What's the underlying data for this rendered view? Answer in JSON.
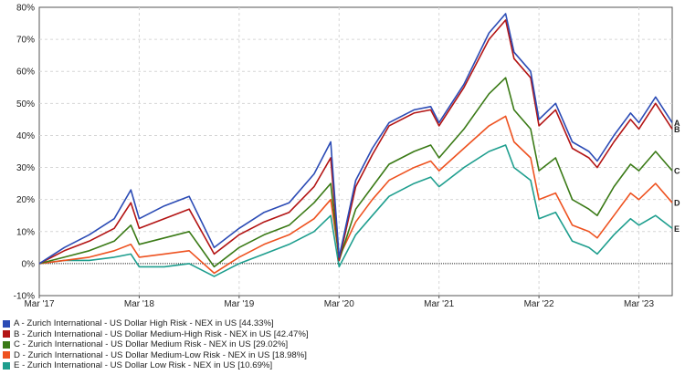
{
  "chart_data": {
    "type": "line",
    "x_tick_labels": [
      "Mar '17",
      "Mar '18",
      "Mar '19",
      "Mar '20",
      "Mar '21",
      "Mar '22",
      "Mar '23"
    ],
    "y_tick_labels": [
      "-10%",
      "0%",
      "10%",
      "20%",
      "30%",
      "40%",
      "50%",
      "60%",
      "70%",
      "80%"
    ],
    "ylim": [
      -10,
      80
    ],
    "xlim": [
      "2017-03",
      "2023-07"
    ],
    "grid": true,
    "zero_line": true,
    "legend_position": "bottom",
    "x": [
      "2017-03",
      "2017-06",
      "2017-09",
      "2017-12",
      "2018-02",
      "2018-03",
      "2018-06",
      "2018-09",
      "2018-12",
      "2019-03",
      "2019-06",
      "2019-09",
      "2019-12",
      "2020-02",
      "2020-03",
      "2020-05",
      "2020-07",
      "2020-09",
      "2020-12",
      "2021-02",
      "2021-03",
      "2021-06",
      "2021-09",
      "2021-11",
      "2021-12",
      "2022-02",
      "2022-03",
      "2022-05",
      "2022-07",
      "2022-09",
      "2022-10",
      "2022-12",
      "2023-02",
      "2023-03",
      "2023-05",
      "2023-07"
    ],
    "series": [
      {
        "name": "A - Zurich International - US Dollar High Risk - NEX in US [44.33%]",
        "end_label": "A",
        "color": "#2b4bb5",
        "values": [
          0,
          5,
          9,
          14,
          23,
          14,
          18,
          21,
          5,
          11,
          16,
          19,
          28,
          38,
          2,
          26,
          36,
          44,
          48,
          49,
          44,
          56,
          72,
          78,
          66,
          60,
          45,
          50,
          38,
          35,
          32,
          40,
          47,
          44,
          52,
          44
        ]
      },
      {
        "name": "B - Zurich International - US Dollar Medium-High Risk - NEX in US [42.47%]",
        "end_label": "B",
        "color": "#b31414",
        "values": [
          0,
          4,
          7,
          11,
          19,
          11,
          14,
          17,
          3,
          9,
          13,
          16,
          24,
          33,
          1,
          24,
          34,
          43,
          47,
          48,
          43,
          55,
          70,
          76,
          64,
          58,
          43,
          48,
          36,
          33,
          30,
          38,
          45,
          42,
          50,
          42
        ]
      },
      {
        "name": "C - Zurich International - US Dollar Medium Risk - NEX in US [29.02%]",
        "end_label": "C",
        "color": "#3a7a16",
        "values": [
          0,
          2,
          4,
          7,
          12,
          6,
          8,
          10,
          -1,
          5,
          9,
          12,
          19,
          25,
          1,
          17,
          24,
          31,
          35,
          37,
          33,
          42,
          53,
          58,
          48,
          42,
          29,
          33,
          20,
          17,
          15,
          24,
          31,
          29,
          35,
          29
        ]
      },
      {
        "name": "D - Zurich International - US Dollar Medium-Low Risk - NEX in US [18.98%]",
        "end_label": "D",
        "color": "#ee5220",
        "values": [
          0,
          1,
          2,
          4,
          6,
          2,
          3,
          4,
          -3,
          2,
          6,
          9,
          14,
          20,
          2,
          13,
          20,
          26,
          30,
          32,
          29,
          36,
          43,
          46,
          38,
          33,
          20,
          22,
          12,
          10,
          8,
          15,
          22,
          20,
          25,
          19
        ]
      },
      {
        "name": "E - Zurich International - US Dollar Low Risk - NEX in US [10.69%]",
        "end_label": "E",
        "color": "#1e9e8e",
        "values": [
          0,
          1,
          1,
          2,
          3,
          -1,
          -1,
          0,
          -4,
          0,
          3,
          6,
          10,
          15,
          -1,
          9,
          15,
          21,
          25,
          27,
          24,
          30,
          35,
          37,
          30,
          26,
          14,
          16,
          7,
          5,
          3,
          9,
          14,
          12,
          15,
          11
        ]
      }
    ]
  }
}
